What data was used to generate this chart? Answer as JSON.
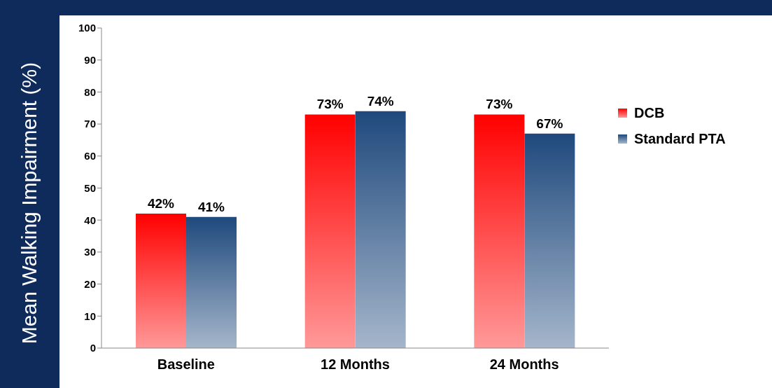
{
  "chart_data": {
    "type": "bar",
    "ylabel": "Mean Walking Impairment (%)",
    "categories": [
      "Baseline",
      "12 Months",
      "24 Months"
    ],
    "series": [
      {
        "name": "DCB",
        "color": "#ff0000",
        "values": [
          42,
          73,
          73
        ],
        "value_labels": [
          "42%",
          "73%",
          "73%"
        ]
      },
      {
        "name": "Standard PTA",
        "color": "#1f497d",
        "values": [
          41,
          74,
          67
        ],
        "value_labels": [
          "41%",
          "74%",
          "67%"
        ]
      }
    ],
    "ylim": [
      0,
      100
    ],
    "yticks": [
      0,
      10,
      20,
      30,
      40,
      50,
      60,
      70,
      80,
      90,
      100
    ],
    "grid": false,
    "legend": "right"
  }
}
